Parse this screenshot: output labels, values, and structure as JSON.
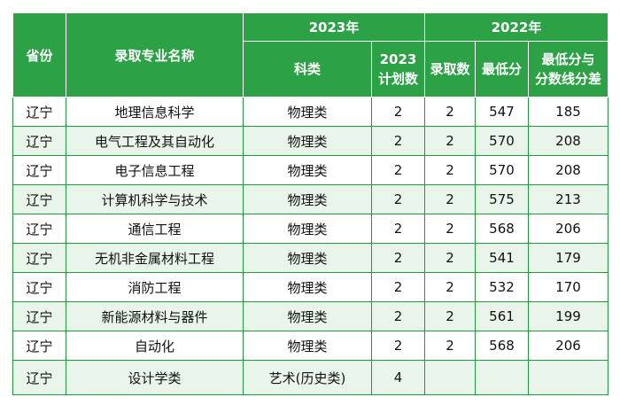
{
  "table": {
    "headers": {
      "province": "省份",
      "major": "录取专业名称",
      "year_2023": "2023年",
      "year_2022": "2022年",
      "category": "科类",
      "plan_line1": "2023",
      "plan_line2": "计划数",
      "admitted": "录取数",
      "min_score": "最低分",
      "diff_line1": "最低分与",
      "diff_line2": "分数线分差"
    },
    "rows": [
      {
        "province": "辽宁",
        "major": "地理信息科学",
        "category": "物理类",
        "plan": "2",
        "admitted": "2",
        "min_score": "547",
        "diff": "185"
      },
      {
        "province": "辽宁",
        "major": "电气工程及其自动化",
        "category": "物理类",
        "plan": "2",
        "admitted": "2",
        "min_score": "570",
        "diff": "208"
      },
      {
        "province": "辽宁",
        "major": "电子信息工程",
        "category": "物理类",
        "plan": "2",
        "admitted": "2",
        "min_score": "570",
        "diff": "208"
      },
      {
        "province": "辽宁",
        "major": "计算机科学与技术",
        "category": "物理类",
        "plan": "2",
        "admitted": "2",
        "min_score": "575",
        "diff": "213"
      },
      {
        "province": "辽宁",
        "major": "通信工程",
        "category": "物理类",
        "plan": "2",
        "admitted": "2",
        "min_score": "568",
        "diff": "206"
      },
      {
        "province": "辽宁",
        "major": "无机非金属材料工程",
        "category": "物理类",
        "plan": "2",
        "admitted": "2",
        "min_score": "541",
        "diff": "179"
      },
      {
        "province": "辽宁",
        "major": "消防工程",
        "category": "物理类",
        "plan": "2",
        "admitted": "2",
        "min_score": "532",
        "diff": "170"
      },
      {
        "province": "辽宁",
        "major": "新能源材料与器件",
        "category": "物理类",
        "plan": "2",
        "admitted": "2",
        "min_score": "561",
        "diff": "199"
      },
      {
        "province": "辽宁",
        "major": "自动化",
        "category": "物理类",
        "plan": "2",
        "admitted": "2",
        "min_score": "568",
        "diff": "206"
      },
      {
        "province": "辽宁",
        "major": "设计学类",
        "category": "艺术(历史类)",
        "plan": "4",
        "admitted": "",
        "min_score": "",
        "diff": ""
      }
    ]
  }
}
